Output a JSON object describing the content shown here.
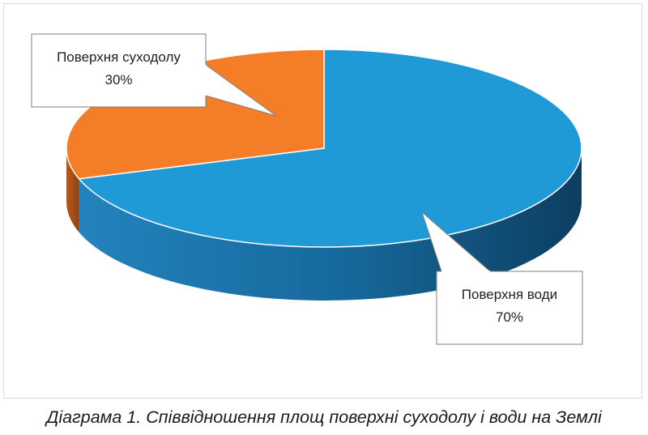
{
  "chart_data": {
    "type": "pie",
    "style": "3d",
    "title": "",
    "categories": [
      "Поверхня суходолу",
      "Поверхня води"
    ],
    "values": [
      30,
      70
    ],
    "value_labels": [
      "30%",
      "70%"
    ],
    "colors": [
      "#f47d28",
      "#1f9ad6"
    ],
    "legend": "none",
    "labels": [
      {
        "name": "Поверхня суходолу",
        "value": "30%"
      },
      {
        "name": "Поверхня води",
        "value": "70%"
      }
    ]
  },
  "caption": "Діаграма 1. Співвідношення площ поверхні суходолу і води на Землі"
}
